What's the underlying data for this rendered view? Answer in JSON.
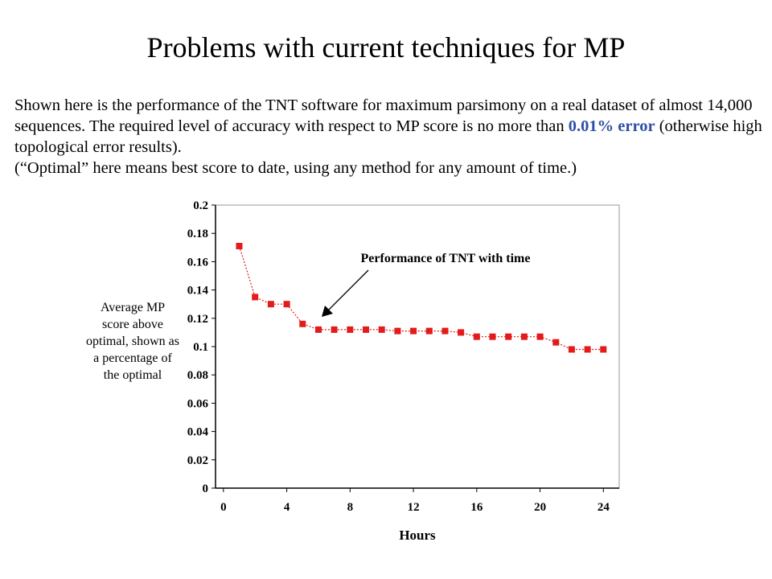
{
  "slide": {
    "title": "Problems with current techniques for MP",
    "desc_part1": "Shown here is the performance of the TNT software for maximum parsimony on a real dataset of almost 14,000 sequences.  The required level of accuracy with respect to MP score is no more than ",
    "desc_highlight": "0.01% error",
    "desc_part2": " (otherwise high topological error results).",
    "desc_line4": "(“Optimal” here means best score to date, using any method for any amount of time.)",
    "highlight_color": "#2e4fa8"
  },
  "chart_data": {
    "type": "line",
    "xlabel": "Hours",
    "ylabel_lines": [
      "Average MP",
      "score above",
      "optimal, shown as",
      "a percentage of",
      "the optimal"
    ],
    "annotation": "Performance of TNT with time",
    "xlim": [
      -0.5,
      25
    ],
    "ylim": [
      0,
      0.2
    ],
    "x_ticks": [
      0,
      4,
      8,
      12,
      16,
      20,
      24
    ],
    "y_ticks": [
      0,
      0.02,
      0.04,
      0.06,
      0.08,
      0.1,
      0.12,
      0.14,
      0.16,
      0.18,
      0.2
    ],
    "y_tick_labels": [
      "0",
      "0.02",
      "0.04",
      "0.06",
      "0.08",
      "0.1",
      "0.12",
      "0.14",
      "0.16",
      "0.18",
      "0.2"
    ],
    "grid": false,
    "marker_color": "#e31b1b",
    "series": [
      {
        "x": [
          1,
          2,
          3,
          4,
          5,
          6,
          7,
          8,
          9,
          10,
          11,
          12,
          13,
          14,
          15,
          16,
          17,
          18,
          19,
          20,
          21,
          22,
          23,
          24
        ],
        "values": [
          0.171,
          0.135,
          0.13,
          0.13,
          0.116,
          0.112,
          0.112,
          0.112,
          0.112,
          0.112,
          0.111,
          0.111,
          0.111,
          0.111,
          0.11,
          0.107,
          0.107,
          0.107,
          0.107,
          0.107,
          0.103,
          0.098,
          0.098,
          0.098
        ]
      }
    ]
  }
}
